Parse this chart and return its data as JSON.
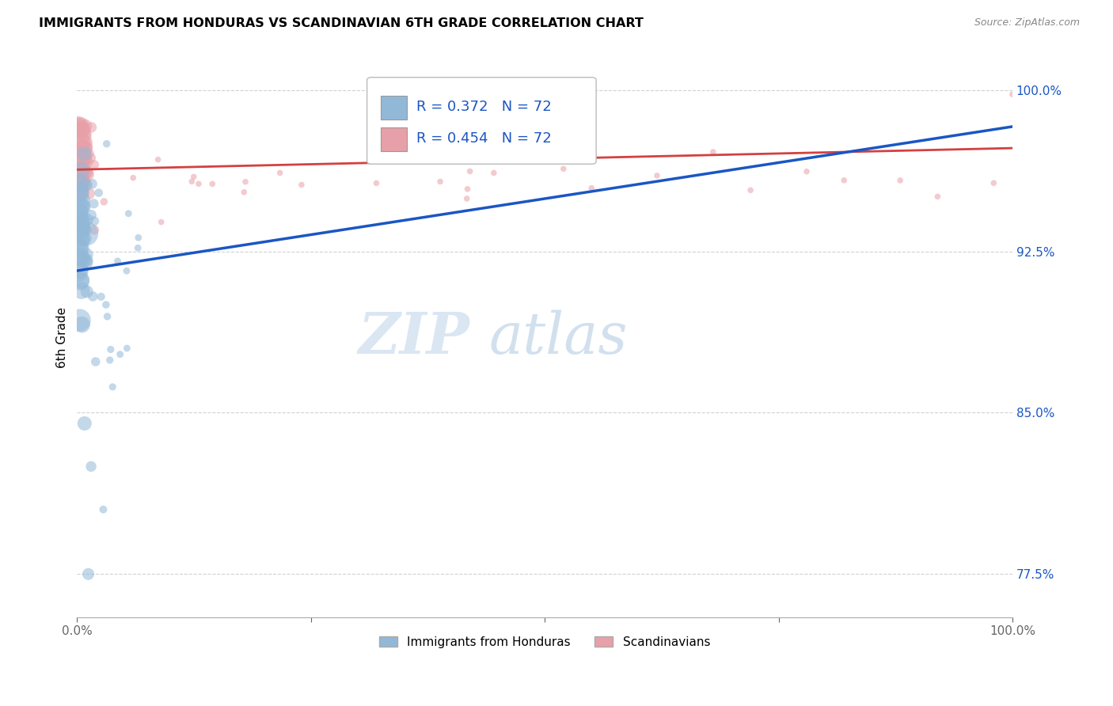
{
  "title": "IMMIGRANTS FROM HONDURAS VS SCANDINAVIAN 6TH GRADE CORRELATION CHART",
  "source": "Source: ZipAtlas.com",
  "ylabel": "6th Grade",
  "y_ticks": [
    0.775,
    0.85,
    0.925,
    1.0
  ],
  "y_tick_labels": [
    "77.5%",
    "85.0%",
    "92.5%",
    "100.0%"
  ],
  "legend_blue_label": "Immigrants from Honduras",
  "legend_pink_label": "Scandinavians",
  "r_blue": 0.372,
  "r_pink": 0.454,
  "n_blue": 72,
  "n_pink": 72,
  "blue_color": "#92b8d8",
  "pink_color": "#e8a0a8",
  "blue_line_color": "#1a56c4",
  "pink_line_color": "#d44040",
  "background_color": "#ffffff",
  "watermark_zip": "ZIP",
  "watermark_atlas": "atlas",
  "xlim": [
    0.0,
    1.0
  ],
  "ylim": [
    0.755,
    1.015
  ]
}
